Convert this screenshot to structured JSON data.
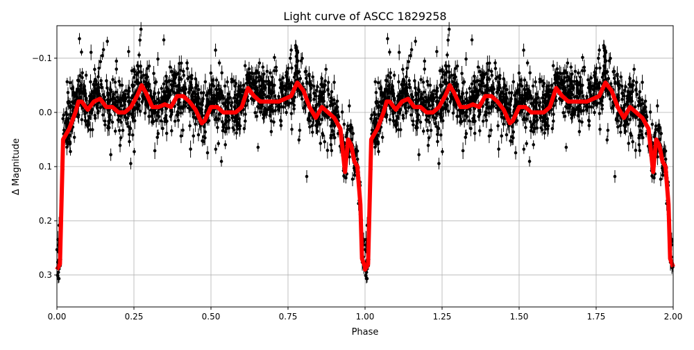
{
  "chart_data": {
    "type": "scatter",
    "title": "Light curve of ASCC 1829258",
    "xlabel": "Phase",
    "ylabel": "Δ Magnitude",
    "xlim": [
      0,
      2
    ],
    "ylim": [
      0.359,
      -0.16
    ],
    "y_inverted": true,
    "grid": true,
    "xticks": [
      "0.00",
      "0.25",
      "0.50",
      "0.75",
      "1.00",
      "1.25",
      "1.50",
      "1.75",
      "2.00"
    ],
    "xtick_values": [
      0,
      0.25,
      0.5,
      0.75,
      1,
      1.25,
      1.5,
      1.75,
      2
    ],
    "yticks": [
      "−0.1",
      "0.0",
      "0.1",
      "0.2",
      "0.3"
    ],
    "ytick_values": [
      -0.1,
      0,
      0.1,
      0.2,
      0.3
    ],
    "series": [
      {
        "kind": "observations with error bars",
        "color": "#000000",
        "note_in_chart": "dense phase-folded photometry scattered about the model, repeated over two cycles"
      },
      {
        "kind": "model line",
        "color": "#ff0000",
        "phase": [
          0.0,
          0.01,
          0.02,
          0.04,
          0.06,
          0.07,
          0.08,
          0.1,
          0.12,
          0.14,
          0.16,
          0.18,
          0.2,
          0.22,
          0.24,
          0.26,
          0.275,
          0.29,
          0.31,
          0.33,
          0.35,
          0.37,
          0.39,
          0.41,
          0.43,
          0.45,
          0.47,
          0.48,
          0.5,
          0.52,
          0.54,
          0.56,
          0.58,
          0.6,
          0.62,
          0.64,
          0.66,
          0.68,
          0.7,
          0.72,
          0.74,
          0.76,
          0.78,
          0.8,
          0.82,
          0.84,
          0.86,
          0.88,
          0.9,
          0.92,
          0.935,
          0.945,
          0.955,
          0.965,
          0.975,
          0.985,
          0.99,
          1.0
        ],
        "magnitude": [
          0.29,
          0.28,
          0.05,
          0.03,
          0.0,
          -0.02,
          -0.02,
          -0.005,
          -0.02,
          -0.025,
          -0.01,
          -0.01,
          0.0,
          0.0,
          -0.01,
          -0.03,
          -0.05,
          -0.035,
          -0.01,
          -0.01,
          -0.015,
          -0.01,
          -0.03,
          -0.03,
          -0.02,
          -0.005,
          0.02,
          0.015,
          -0.01,
          -0.01,
          0.0,
          0.0,
          0.0,
          -0.01,
          -0.045,
          -0.03,
          -0.02,
          -0.02,
          -0.02,
          -0.02,
          -0.025,
          -0.03,
          -0.055,
          -0.04,
          -0.01,
          0.01,
          -0.01,
          0.0,
          0.01,
          0.03,
          0.11,
          0.05,
          0.06,
          0.09,
          0.1,
          0.17,
          0.27,
          0.285
        ],
        "repeat_period": 1
      }
    ]
  }
}
